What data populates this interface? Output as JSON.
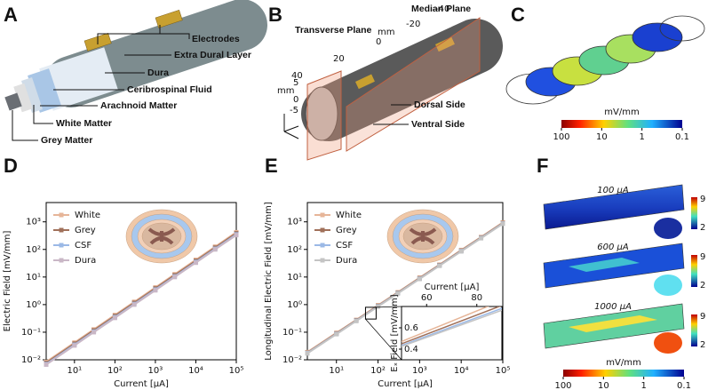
{
  "panels": {
    "A": {
      "label": "A",
      "labels": [
        "Electrodes",
        "Extra Dural Layer",
        "Dura",
        "Ceribrospinal Fluid",
        "Arachnoid Matter",
        "White Matter",
        "Grey Matter"
      ]
    },
    "B": {
      "label": "B",
      "labels": [
        "Median Plane",
        "Transverse Plane",
        "mm",
        "Dorsal Side",
        "Ventral Side",
        "-40",
        "-20",
        "0",
        "20",
        "40",
        "mm",
        "5",
        "0",
        "-5"
      ]
    },
    "C": {
      "label": "C",
      "colorbar": {
        "label": "mV/mm",
        "lim": [
          100,
          0.1
        ],
        "ticks": [
          100,
          10,
          1,
          0.1
        ]
      }
    },
    "F": {
      "label": "F",
      "conditions": [
        "100 μA",
        "600 μA",
        "1000 μA"
      ],
      "small_colorbar_ticks": [
        9,
        2
      ],
      "colorbar": {
        "label": "mV/mm",
        "lim": [
          100,
          0.1
        ],
        "ticks": [
          100,
          10,
          1,
          0.1
        ]
      }
    }
  },
  "chart_data": [
    {
      "type": "line",
      "panel_label": "D",
      "xlabel": "Current [μA]",
      "ylabel": "Electric Field [mV/mm]",
      "xscale": "log",
      "yscale": "log",
      "marker": "square",
      "xlim": [
        2,
        100000
      ],
      "ylim": [
        0.01,
        5000
      ],
      "xticks": [
        {
          "value": 10,
          "label": "10¹"
        },
        {
          "value": 100,
          "label": "10²"
        },
        {
          "value": 1000,
          "label": "10³"
        },
        {
          "value": 10000,
          "label": "10⁴"
        },
        {
          "value": 100000,
          "label": "10⁵"
        }
      ],
      "yticks": [
        {
          "value": 0.01,
          "label": "10⁻²"
        },
        {
          "value": 0.1,
          "label": "10⁻¹"
        },
        {
          "value": 1,
          "label": "10⁰"
        },
        {
          "value": 10,
          "label": "10¹"
        },
        {
          "value": 100,
          "label": "10²"
        },
        {
          "value": 1000,
          "label": "10³"
        }
      ],
      "x": [
        2,
        10,
        30,
        100,
        300,
        1000,
        3000,
        10000,
        30000,
        100000
      ],
      "series": [
        {
          "name": "White",
          "color": "#e6b598",
          "values": [
            0.0084,
            0.042,
            0.126,
            0.42,
            1.26,
            4.2,
            12.6,
            42,
            126,
            420
          ]
        },
        {
          "name": "Grey",
          "color": "#a0705a",
          "values": [
            0.0077,
            0.0385,
            0.1155,
            0.385,
            1.155,
            3.85,
            11.55,
            38.5,
            115.5,
            385
          ]
        },
        {
          "name": "CSF",
          "color": "#9bb9e6",
          "values": [
            0.007,
            0.035,
            0.105,
            0.35,
            1.05,
            3.5,
            10.5,
            35,
            105,
            350
          ]
        },
        {
          "name": "Dura",
          "color": "#c9b7c6",
          "values": [
            0.0067,
            0.033,
            0.1,
            0.33,
            1.0,
            3.3,
            10,
            33,
            100,
            330
          ]
        }
      ]
    },
    {
      "type": "line",
      "panel_label": "E",
      "xlabel": "Current [μA]",
      "ylabel": "Longitudinal Electric Field [mV/mm]",
      "xscale": "log",
      "yscale": "log",
      "marker": "square",
      "xlim": [
        2,
        100000
      ],
      "ylim": [
        0.01,
        5000
      ],
      "xticks": [
        {
          "value": 10,
          "label": "10¹"
        },
        {
          "value": 100,
          "label": "10²"
        },
        {
          "value": 1000,
          "label": "10³"
        },
        {
          "value": 10000,
          "label": "10⁴"
        },
        {
          "value": 100000,
          "label": "10⁵"
        }
      ],
      "yticks": [
        {
          "value": 0.01,
          "label": "10⁻²"
        },
        {
          "value": 0.1,
          "label": "10⁻¹"
        },
        {
          "value": 1,
          "label": "10⁰"
        },
        {
          "value": 10,
          "label": "10¹"
        },
        {
          "value": 100,
          "label": "10²"
        },
        {
          "value": 1000,
          "label": "10³"
        }
      ],
      "x": [
        2,
        10,
        30,
        100,
        300,
        1000,
        3000,
        10000,
        30000,
        100000
      ],
      "series": [
        {
          "name": "White",
          "color": "#e6b598",
          "values": [
            0.019,
            0.095,
            0.28,
            0.95,
            2.8,
            9.5,
            28,
            95,
            280,
            950
          ]
        },
        {
          "name": "Grey",
          "color": "#a0705a",
          "values": [
            0.018,
            0.09,
            0.27,
            0.9,
            2.7,
            9,
            27,
            90,
            270,
            900
          ]
        },
        {
          "name": "CSF",
          "color": "#9bb9e6",
          "values": [
            0.0175,
            0.087,
            0.26,
            0.87,
            2.6,
            8.7,
            26,
            87,
            260,
            870
          ]
        },
        {
          "name": "Dura",
          "color": "#c4c4c4",
          "values": [
            0.017,
            0.085,
            0.255,
            0.85,
            2.55,
            8.5,
            25.5,
            85,
            255,
            850
          ]
        }
      ],
      "inset": {
        "xlabel": "Current [μA]",
        "ylabel": "Eₓ Field [mV/mm]",
        "xlim": [
          50,
          90
        ],
        "ylim": [
          0.3,
          0.8
        ],
        "xticks": [
          60,
          80
        ],
        "yticks": [
          0.4,
          0.6
        ]
      }
    }
  ]
}
